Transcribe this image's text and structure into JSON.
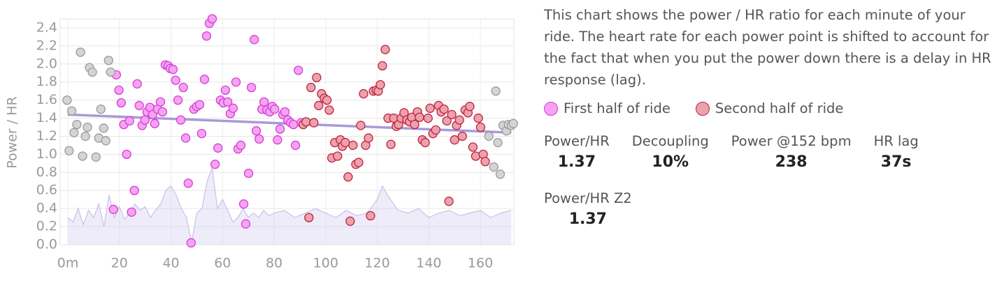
{
  "chart_data": {
    "type": "scatter",
    "y_label": "Power / HR",
    "xlim": [
      -3,
      173
    ],
    "ylim": [
      0,
      2.5
    ],
    "xticks": [
      {
        "value": 0,
        "label": "0m"
      },
      20,
      40,
      60,
      80,
      100,
      120,
      140,
      160
    ],
    "yticks": [
      {
        "value": 0,
        "label": "0.0"
      },
      0.2,
      0.4,
      0.6,
      0.8,
      {
        "value": 1,
        "label": "1.0"
      },
      1.2,
      1.4,
      1.6,
      1.8,
      {
        "value": 2,
        "label": "2.0"
      },
      2.2,
      2.4
    ],
    "grid": true,
    "series": [
      {
        "name": "First half of ride",
        "color": "#f5a3f2",
        "edge_color": "#d63cd6",
        "x": [
          17.7,
          18.8,
          19.8,
          20.7,
          21.7,
          22.8,
          23.9,
          24.7,
          25.8,
          26.9,
          27.7,
          28.8,
          29.9,
          30.7,
          31.8,
          32.9,
          33.7,
          34.8,
          35.9,
          36.7,
          37.8,
          38.9,
          39.7,
          40.8,
          41.8,
          42.7,
          43.8,
          44.8,
          45.7,
          46.7,
          47.8,
          48.9,
          50,
          51.1,
          51.9,
          53,
          53.8,
          54.9,
          56,
          57.1,
          58.2,
          59.2,
          60.3,
          61.1,
          62,
          63,
          64.1,
          65.2,
          66,
          67.1,
          68.2,
          69,
          70.1,
          71.2,
          72.3,
          73.1,
          74.2,
          75.3,
          76.1,
          77.2,
          78.3,
          79.3,
          80.2,
          81.3,
          82.3,
          83.4,
          84.2,
          85.3,
          86.4,
          87.5,
          88.3,
          89.4,
          90.5
        ],
        "values": [
          0.39,
          1.88,
          1.71,
          1.57,
          1.33,
          1.0,
          1.37,
          0.36,
          0.6,
          1.78,
          1.54,
          1.32,
          1.38,
          1.47,
          1.52,
          1.44,
          1.34,
          1.5,
          1.58,
          1.47,
          1.99,
          1.98,
          1.95,
          1.94,
          1.82,
          1.6,
          1.38,
          1.74,
          1.18,
          0.68,
          0.02,
          1.5,
          1.53,
          1.55,
          1.23,
          1.83,
          2.31,
          2.45,
          2.5,
          0.89,
          1.07,
          1.6,
          1.57,
          1.71,
          1.58,
          1.45,
          1.51,
          1.8,
          1.06,
          1.1,
          0.45,
          0.23,
          0.79,
          1.74,
          2.27,
          1.26,
          1.17,
          1.5,
          1.58,
          1.49,
          1.47,
          1.53,
          1.5,
          1.16,
          1.28,
          1.44,
          1.47,
          1.38,
          1.35,
          1.33,
          1.1,
          1.93,
          1.35
        ]
      },
      {
        "name": "Second half of ride",
        "color": "#eaa3ad",
        "edge_color": "#c2203c",
        "x": [
          91.3,
          92.4,
          93.5,
          94.3,
          95.4,
          96.5,
          97.3,
          98.4,
          99.5,
          100.5,
          101.4,
          102.4,
          103.5,
          104.6,
          105.7,
          106.5,
          107.6,
          108.7,
          109.5,
          110.6,
          111.7,
          112.8,
          113.6,
          114.7,
          115.5,
          116.6,
          117.4,
          118.5,
          119.6,
          120.4,
          121.2,
          122,
          123.1,
          124.2,
          125.3,
          126.4,
          127.4,
          128.3,
          129.3,
          130.4,
          131.5,
          132.6,
          133.4,
          134.5,
          135.6,
          136.4,
          137.5,
          138.6,
          139.7,
          140.5,
          141.6,
          142.7,
          143.8,
          144.8,
          145.9,
          147,
          147.8,
          148.9,
          150,
          150.8,
          151.9,
          153,
          154.1,
          155.2,
          155.9,
          157.1,
          158.2,
          159.2,
          160.1,
          161.1,
          161.9
        ],
        "values": [
          1.33,
          1.36,
          0.3,
          1.74,
          1.35,
          1.85,
          1.54,
          1.67,
          1.62,
          1.6,
          1.49,
          0.96,
          1.13,
          0.98,
          1.16,
          1.09,
          1.13,
          0.75,
          0.26,
          1.1,
          0.89,
          0.91,
          1.32,
          1.67,
          1.1,
          1.18,
          0.32,
          1.7,
          1.71,
          1.7,
          1.77,
          1.98,
          2.16,
          1.4,
          1.11,
          1.4,
          1.31,
          1.33,
          1.4,
          1.46,
          1.38,
          1.36,
          1.41,
          1.33,
          1.47,
          1.41,
          1.16,
          1.13,
          1.4,
          1.51,
          1.23,
          1.27,
          1.54,
          1.47,
          1.5,
          1.37,
          0.48,
          1.44,
          1.16,
          1.32,
          1.38,
          1.2,
          1.49,
          1.46,
          1.53,
          1.08,
          0.98,
          1.4,
          1.3,
          1.0,
          0.92
        ]
      },
      {
        "color": "#d4d4d4",
        "edge_color": "#9a9a9a",
        "x": [
          0.5,
          -0.3,
          1.5,
          2.4,
          3.5,
          4.9,
          5.7,
          6.8,
          7.6,
          8.4,
          9.5,
          10.9,
          12,
          12.8,
          13.9,
          14.7,
          15.8,
          16.6,
          163.3,
          165.2,
          166,
          166.8,
          167.7,
          168.8,
          170.1,
          170.9,
          172,
          172.8
        ],
        "values": [
          1.04,
          1.6,
          1.48,
          1.24,
          1.33,
          2.13,
          0.98,
          1.2,
          1.3,
          1.96,
          1.91,
          0.97,
          1.18,
          1.5,
          1.29,
          1.15,
          2.04,
          1.91,
          1.2,
          0.86,
          1.7,
          1.13,
          0.78,
          1.32,
          1.26,
          1.33,
          1.32,
          1.34
        ]
      }
    ],
    "trend": {
      "color": "#a99ad8",
      "x": [
        0,
        172
      ],
      "y": [
        1.44,
        1.24
      ]
    },
    "area": {
      "color": "#c9bfea",
      "x": [
        0,
        2,
        4,
        6,
        8,
        10,
        12,
        14,
        16,
        18,
        20,
        22,
        24,
        26,
        28,
        30,
        32,
        34,
        36,
        38,
        40,
        42,
        44,
        46,
        48,
        50,
        52,
        54,
        56,
        58,
        60,
        62,
        64,
        66,
        68,
        70,
        72,
        74,
        76,
        78,
        80,
        84,
        88,
        92,
        96,
        100,
        104,
        108,
        112,
        116,
        120,
        122,
        124,
        128,
        132,
        136,
        140,
        144,
        148,
        152,
        156,
        160,
        164,
        168,
        172
      ],
      "values": [
        0.3,
        0.25,
        0.4,
        0.22,
        0.38,
        0.3,
        0.45,
        0.2,
        0.55,
        0.3,
        0.42,
        0.28,
        0.35,
        0.45,
        0.38,
        0.42,
        0.3,
        0.38,
        0.45,
        0.6,
        0.65,
        0.55,
        0.4,
        0.3,
        0.02,
        0.35,
        0.4,
        0.7,
        0.85,
        0.4,
        0.5,
        0.38,
        0.25,
        0.3,
        0.4,
        0.3,
        0.35,
        0.3,
        0.38,
        0.32,
        0.35,
        0.38,
        0.3,
        0.35,
        0.4,
        0.35,
        0.3,
        0.38,
        0.32,
        0.35,
        0.5,
        0.65,
        0.55,
        0.38,
        0.35,
        0.4,
        0.3,
        0.35,
        0.38,
        0.32,
        0.35,
        0.38,
        0.3,
        0.35,
        0.38
      ]
    }
  },
  "panel": {
    "description": "This chart shows the power / HR ratio for each minute of your ride. The heart rate for each power point is shifted to account for the fact that when you put the power down there is a delay in HR response (lag).",
    "stats": [
      {
        "label": "Power/HR",
        "value": "1.37"
      },
      {
        "label": "Decoupling",
        "value": "10%"
      },
      {
        "label": "Power @152 bpm",
        "value": "238"
      },
      {
        "label": "HR lag",
        "value": "37s"
      },
      {
        "label": "Power/HR Z2",
        "value": "1.37"
      }
    ]
  }
}
